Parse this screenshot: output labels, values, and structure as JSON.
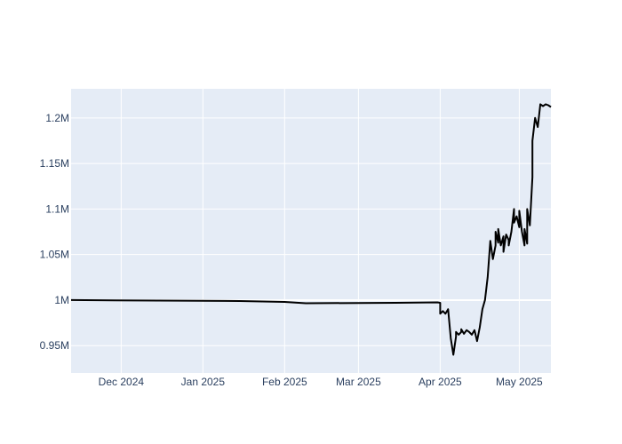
{
  "chart_data": {
    "type": "line",
    "title": "",
    "xlabel": "",
    "ylabel": "",
    "grid": true,
    "legend": "none",
    "colors": {
      "background": "#ffffff",
      "plot_background": "#e5ecf6",
      "grid": "#ffffff",
      "line": "#000000",
      "tick_text": "#2a3f5f"
    },
    "x_ticks": [
      {
        "x": "2024-12-01",
        "label": "Dec 2024"
      },
      {
        "x": "2025-01-01",
        "label": "Jan 2025"
      },
      {
        "x": "2025-02-01",
        "label": "Feb 2025"
      },
      {
        "x": "2025-03-01",
        "label": "Mar 2025"
      },
      {
        "x": "2025-04-01",
        "label": "Apr 2025"
      },
      {
        "x": "2025-05-01",
        "label": "May 2025"
      }
    ],
    "y_ticks": [
      {
        "y": 950000,
        "label": "0.95M"
      },
      {
        "y": 1000000,
        "label": "1M"
      },
      {
        "y": 1050000,
        "label": "1.05M"
      },
      {
        "y": 1100000,
        "label": "1.1M"
      },
      {
        "y": 1150000,
        "label": "1.15M"
      },
      {
        "y": 1200000,
        "label": "1.2M"
      }
    ],
    "xlim": [
      "2024-11-12",
      "2025-05-13"
    ],
    "ylim": [
      920000,
      1232000
    ],
    "series": [
      {
        "x": [
          "2024-11-12",
          "2024-12-15",
          "2025-01-15",
          "2025-02-01",
          "2025-02-09",
          "2025-03-15",
          "2025-03-31",
          "2025-04-01",
          "2025-04-01",
          "2025-04-02",
          "2025-04-03",
          "2025-04-04",
          "2025-04-05",
          "2025-04-06",
          "2025-04-07",
          "2025-04-07",
          "2025-04-08",
          "2025-04-09",
          "2025-04-09",
          "2025-04-10",
          "2025-04-11",
          "2025-04-12",
          "2025-04-13",
          "2025-04-14",
          "2025-04-15",
          "2025-04-16",
          "2025-04-17",
          "2025-04-18",
          "2025-04-19",
          "2025-04-20",
          "2025-04-21",
          "2025-04-22",
          "2025-04-22",
          "2025-04-23",
          "2025-04-23",
          "2025-04-24",
          "2025-04-25",
          "2025-04-25",
          "2025-04-26",
          "2025-04-27",
          "2025-04-27",
          "2025-04-28",
          "2025-04-29",
          "2025-04-29",
          "2025-04-30",
          "2025-05-01",
          "2025-05-01",
          "2025-05-02",
          "2025-05-03",
          "2025-05-03",
          "2025-05-04",
          "2025-05-04",
          "2025-05-05",
          "2025-05-06",
          "2025-05-06",
          "2025-05-07",
          "2025-05-08",
          "2025-05-09",
          "2025-05-10",
          "2025-05-11",
          "2025-05-12",
          "2025-05-13"
        ],
        "y": [
          1000000,
          999500,
          999000,
          998000,
          996500,
          997000,
          997500,
          997000,
          985000,
          988000,
          985000,
          990000,
          958000,
          940000,
          960000,
          965000,
          962000,
          965000,
          968000,
          963000,
          967000,
          965000,
          962000,
          967000,
          955000,
          970000,
          990000,
          1000000,
          1025000,
          1065000,
          1045000,
          1060000,
          1075000,
          1063000,
          1078000,
          1060000,
          1070000,
          1053000,
          1072000,
          1066000,
          1060000,
          1075000,
          1100000,
          1085000,
          1092000,
          1080000,
          1098000,
          1075000,
          1060000,
          1078000,
          1062000,
          1100000,
          1082000,
          1135000,
          1175000,
          1200000,
          1190000,
          1215000,
          1213000,
          1215000,
          1214000,
          1212000
        ]
      }
    ]
  }
}
